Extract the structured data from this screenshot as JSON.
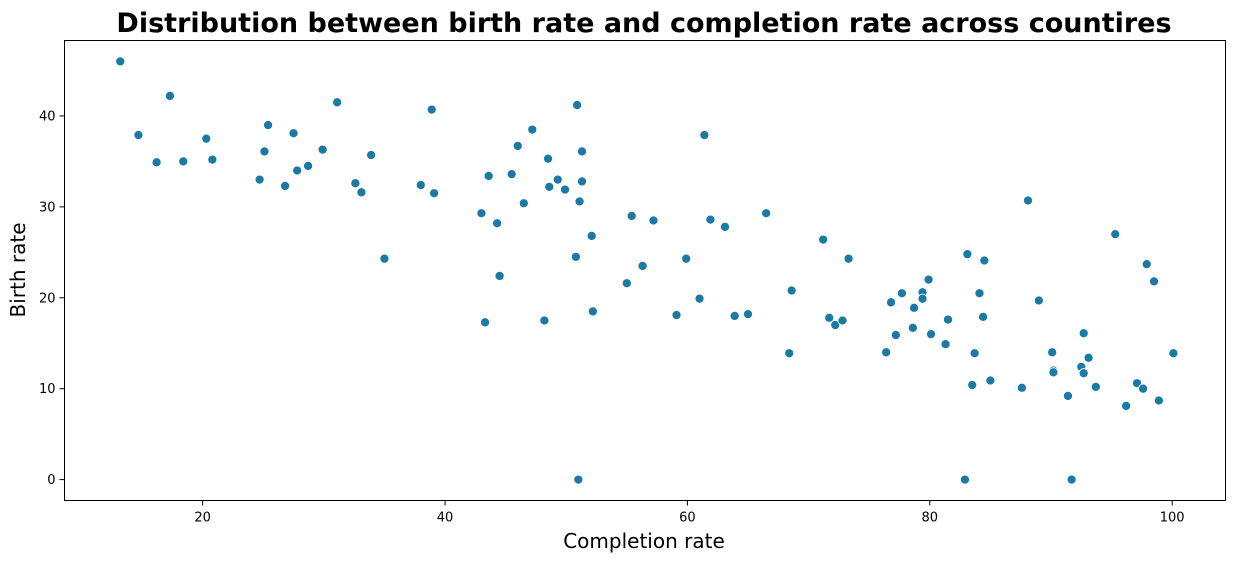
{
  "chart_data": {
    "type": "scatter",
    "title": "Distribution between birth rate and completion rate across countires",
    "xlabel": "Completion rate",
    "ylabel": "Birth rate",
    "xlim": [
      8.6,
      104.4
    ],
    "ylim": [
      -2.3,
      48.3
    ],
    "xticks": [
      20,
      40,
      60,
      80,
      100
    ],
    "yticks": [
      0,
      10,
      20,
      30,
      40
    ],
    "grid": false,
    "color": "#1a7aa5",
    "points": [
      [
        13.2,
        46.0
      ],
      [
        14.7,
        37.9
      ],
      [
        16.2,
        34.9
      ],
      [
        17.3,
        42.2
      ],
      [
        18.4,
        35.0
      ],
      [
        20.3,
        37.5
      ],
      [
        20.8,
        35.2
      ],
      [
        24.7,
        33.0
      ],
      [
        25.1,
        36.1
      ],
      [
        25.4,
        39.0
      ],
      [
        26.8,
        32.3
      ],
      [
        27.5,
        38.1
      ],
      [
        27.8,
        34.0
      ],
      [
        28.7,
        34.5
      ],
      [
        29.9,
        36.3
      ],
      [
        31.1,
        41.5
      ],
      [
        32.6,
        32.6
      ],
      [
        33.1,
        31.6
      ],
      [
        33.9,
        35.7
      ],
      [
        35.0,
        24.3
      ],
      [
        38.0,
        32.4
      ],
      [
        38.9,
        40.7
      ],
      [
        39.1,
        31.5
      ],
      [
        43.0,
        29.3
      ],
      [
        43.3,
        17.3
      ],
      [
        43.6,
        33.4
      ],
      [
        44.3,
        28.2
      ],
      [
        44.5,
        22.4
      ],
      [
        45.5,
        33.6
      ],
      [
        46.0,
        36.7
      ],
      [
        46.5,
        30.4
      ],
      [
        47.2,
        38.5
      ],
      [
        48.2,
        17.5
      ],
      [
        48.5,
        35.3
      ],
      [
        48.6,
        32.2
      ],
      [
        49.3,
        33.0
      ],
      [
        49.9,
        31.9
      ],
      [
        50.8,
        24.5
      ],
      [
        50.9,
        41.2
      ],
      [
        51.1,
        30.6
      ],
      [
        51.3,
        36.1
      ],
      [
        51.3,
        32.8
      ],
      [
        51.0,
        0.0
      ],
      [
        52.1,
        26.8
      ],
      [
        52.2,
        18.5
      ],
      [
        55.0,
        21.6
      ],
      [
        55.4,
        29.0
      ],
      [
        56.3,
        23.5
      ],
      [
        57.2,
        28.5
      ],
      [
        59.1,
        18.1
      ],
      [
        59.9,
        24.3
      ],
      [
        61.0,
        19.9
      ],
      [
        61.4,
        37.9
      ],
      [
        61.9,
        28.6
      ],
      [
        63.1,
        27.8
      ],
      [
        63.9,
        18.0
      ],
      [
        65.0,
        18.2
      ],
      [
        66.5,
        29.3
      ],
      [
        68.4,
        13.9
      ],
      [
        68.6,
        20.8
      ],
      [
        71.2,
        26.4
      ],
      [
        71.7,
        17.8
      ],
      [
        72.2,
        17.0
      ],
      [
        72.8,
        17.5
      ],
      [
        73.3,
        24.3
      ],
      [
        76.4,
        14.0
      ],
      [
        76.8,
        19.5
      ],
      [
        77.2,
        15.9
      ],
      [
        77.7,
        20.5
      ],
      [
        78.6,
        16.7
      ],
      [
        78.7,
        18.9
      ],
      [
        79.4,
        20.6
      ],
      [
        79.4,
        19.9
      ],
      [
        79.9,
        22.0
      ],
      [
        80.1,
        16.0
      ],
      [
        81.3,
        14.9
      ],
      [
        81.5,
        17.6
      ],
      [
        82.9,
        0.0
      ],
      [
        83.1,
        24.8
      ],
      [
        83.5,
        10.4
      ],
      [
        83.7,
        13.9
      ],
      [
        84.1,
        20.5
      ],
      [
        84.4,
        17.9
      ],
      [
        84.5,
        24.1
      ],
      [
        85.0,
        10.9
      ],
      [
        87.6,
        10.1
      ],
      [
        88.1,
        30.7
      ],
      [
        89.0,
        19.7
      ],
      [
        90.1,
        14.0
      ],
      [
        90.2,
        12.0
      ],
      [
        90.2,
        11.8
      ],
      [
        91.4,
        9.2
      ],
      [
        91.7,
        0.0
      ],
      [
        92.5,
        12.4
      ],
      [
        92.7,
        16.1
      ],
      [
        92.7,
        11.7
      ],
      [
        93.1,
        13.4
      ],
      [
        93.7,
        10.2
      ],
      [
        95.3,
        27.0
      ],
      [
        96.2,
        8.1
      ],
      [
        97.1,
        10.6
      ],
      [
        97.6,
        10.0
      ],
      [
        97.9,
        23.7
      ],
      [
        98.5,
        21.8
      ],
      [
        98.9,
        8.7
      ],
      [
        100.1,
        13.9
      ]
    ]
  }
}
